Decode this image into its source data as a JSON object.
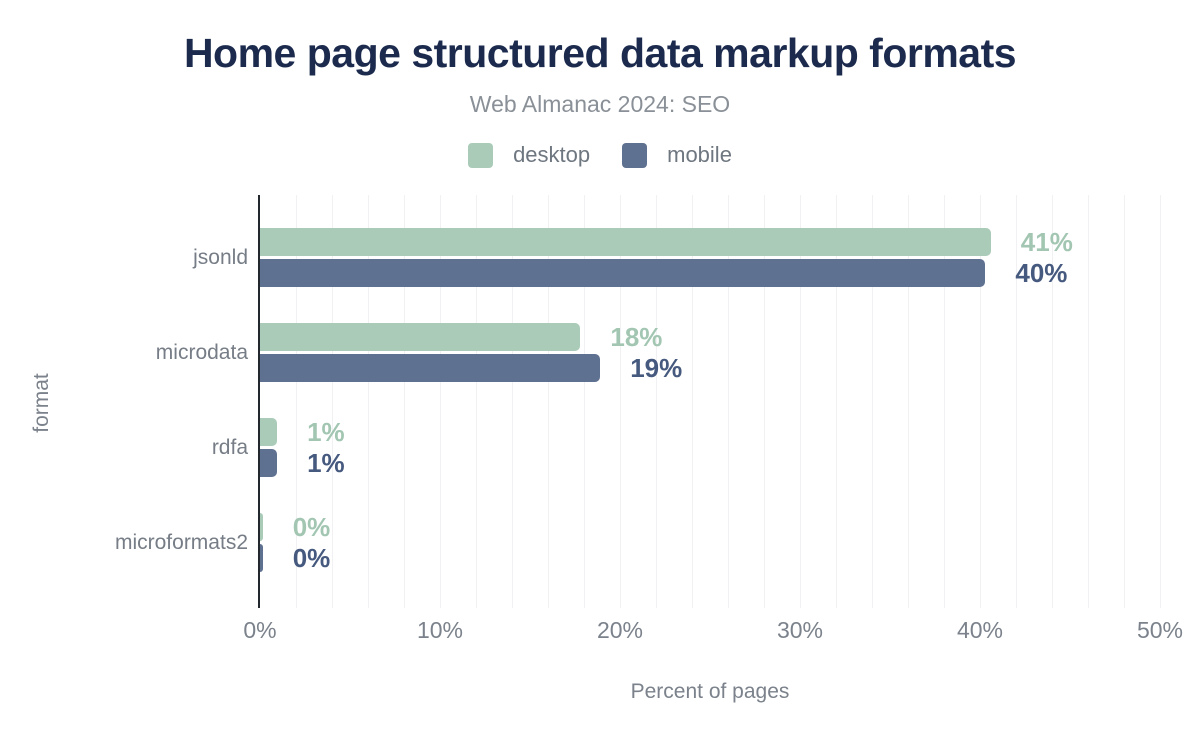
{
  "header": {
    "title": "Home page structured data markup formats",
    "subtitle": "Web Almanac 2024: SEO"
  },
  "legend": [
    {
      "label": "desktop",
      "color": "#a9cbb8"
    },
    {
      "label": "mobile",
      "color": "#5f7190"
    }
  ],
  "chart_data": {
    "type": "bar",
    "orientation": "horizontal",
    "title": "Home page structured data markup formats",
    "subtitle": "Web Almanac 2024: SEO",
    "categories": [
      "jsonld",
      "microdata",
      "rdfa",
      "microformats2"
    ],
    "series": [
      {
        "name": "desktop",
        "color": "#a9cbb8",
        "label_color": "#a2c6b2",
        "values": [
          41,
          18,
          1,
          0
        ],
        "bar_lengths_pct": [
          40.6,
          17.8,
          0.95,
          0.15
        ]
      },
      {
        "name": "mobile",
        "color": "#5f7190",
        "label_color": "#46597e",
        "values": [
          40,
          19,
          1,
          0
        ],
        "bar_lengths_pct": [
          40.3,
          18.9,
          0.95,
          0.15
        ]
      }
    ],
    "value_suffix": "%",
    "xlabel": "Percent of pages",
    "ylabel": "format",
    "x_ticks": [
      {
        "value": 0,
        "label": "0%"
      },
      {
        "value": 10,
        "label": "10%"
      },
      {
        "value": 20,
        "label": "20%"
      },
      {
        "value": 30,
        "label": "30%"
      },
      {
        "value": 40,
        "label": "40%"
      },
      {
        "value": 50,
        "label": "50%"
      }
    ],
    "xlim": [
      0,
      50
    ],
    "grid_minor_step_pct": 2,
    "grid_on": true,
    "legend_position": "top",
    "colors": {
      "title": "#1c2b4d",
      "subtitle_text": "#8a9097",
      "axis_text": "#7b828b",
      "axis_line": "#23272e",
      "gridline": "#f1f1f4",
      "background": "#ffffff"
    }
  }
}
